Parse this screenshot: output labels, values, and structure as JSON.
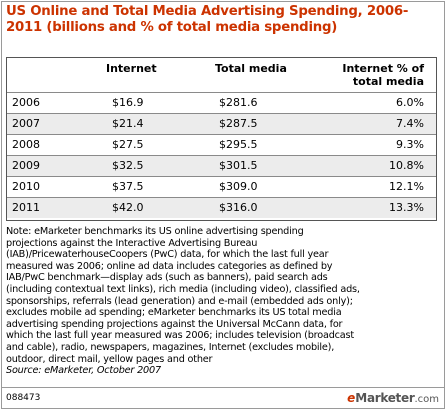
{
  "title": "US Online and Total Media Advertising Spending, 2006-2011 (billions and % of total media spending)",
  "chart_data": {
    "type": "table",
    "title": "US Online and Total Media Advertising Spending, 2006-2011 (billions and % of total media spending)",
    "columns": [
      "",
      "Internet",
      "Total media",
      "Internet % of total media"
    ],
    "rows": [
      [
        "2006",
        "$16.9",
        "$281.6",
        "6.0%"
      ],
      [
        "2007",
        "$21.4",
        "$287.5",
        "7.4%"
      ],
      [
        "2008",
        "$27.5",
        "$295.5",
        "9.3%"
      ],
      [
        "2009",
        "$32.5",
        "$301.5",
        "10.8%"
      ],
      [
        "2010",
        "$37.5",
        "$309.0",
        "12.1%"
      ],
      [
        "2011",
        "$42.0",
        "$316.0",
        "13.3%"
      ]
    ]
  },
  "note_lines": [
    "Note: eMarketer benchmarks its US online advertising spending",
    "projections against the Interactive Advertising Bureau",
    "(IAB)/PricewaterhouseCoopers (PwC) data, for which the last full year",
    "measured was 2006; online ad data includes categories as defined by",
    "IAB/PwC benchmark—display ads (such as banners), paid search ads",
    "(including contextual text links), rich media (including video), classified ads,",
    "sponsorships, referrals (lead generation) and e-mail (embedded ads only);",
    "excludes mobile ad spending; eMarketer benchmarks its US total media",
    "advertising spending projections against the Universal McCann data, for",
    "which the last full year measured was 2006; includes television (broadcast",
    "and cable), radio, newspapers, magazines, Internet (excludes mobile),",
    "outdoor, direct mail, yellow pages and other"
  ],
  "source": "Source: eMarketer, October 2007",
  "footer": {
    "code": "088473",
    "logo_prefix": "e",
    "logo_rest": "Marketer",
    "logo_suffix": ".com"
  }
}
